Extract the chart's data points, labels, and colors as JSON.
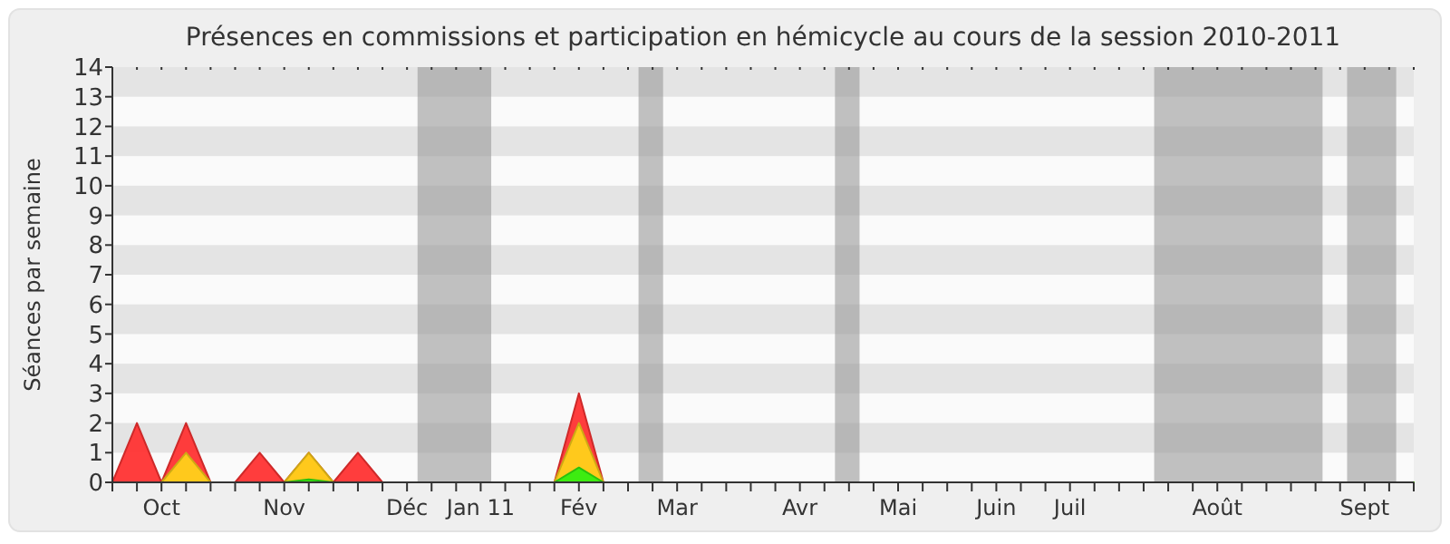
{
  "chart_data": {
    "type": "area",
    "title": "Présences en commissions et participation en hémicycle au cours de la session 2010-2011",
    "ylabel": "Séances par semaine",
    "x": [
      "2010-09-27",
      "2010-10-04",
      "2010-10-11",
      "2010-10-18",
      "2010-10-25",
      "2010-11-01",
      "2010-11-08",
      "2010-11-15",
      "2010-11-22",
      "2010-11-29",
      "2010-12-06",
      "2010-12-13",
      "2010-12-20",
      "2010-12-27",
      "2011-01-03",
      "2011-01-10",
      "2011-01-17",
      "2011-01-24",
      "2011-01-31",
      "2011-02-07",
      "2011-02-14",
      "2011-02-21",
      "2011-02-28",
      "2011-03-07",
      "2011-03-14",
      "2011-03-21",
      "2011-03-28",
      "2011-04-04",
      "2011-04-11",
      "2011-04-18",
      "2011-04-25",
      "2011-05-02",
      "2011-05-09",
      "2011-05-16",
      "2011-05-23",
      "2011-05-30",
      "2011-06-06",
      "2011-06-13",
      "2011-06-20",
      "2011-06-27",
      "2011-07-04",
      "2011-07-11",
      "2011-07-18",
      "2011-07-25",
      "2011-08-01",
      "2011-08-08",
      "2011-08-15",
      "2011-08-22",
      "2011-08-29",
      "2011-09-05",
      "2011-09-12",
      "2011-09-19",
      "2011-09-26",
      "2011-10-03"
    ],
    "series": [
      {
        "color": "#ff3333",
        "values": [
          0,
          2,
          0,
          2,
          0,
          0,
          1,
          0,
          1,
          0,
          1,
          0,
          0,
          0,
          0,
          0,
          0,
          0,
          0,
          3,
          0,
          0,
          0,
          0,
          0,
          0,
          0,
          0,
          0,
          0,
          0,
          0,
          0,
          0,
          0,
          0,
          0,
          0,
          0,
          0,
          0,
          0,
          0,
          0,
          0,
          0,
          0,
          0,
          0,
          0,
          0,
          0,
          0,
          0
        ]
      },
      {
        "color": "#ffd11a",
        "values": [
          0,
          0,
          0,
          1,
          0,
          0,
          0,
          0,
          1,
          0,
          0,
          0,
          0,
          0,
          0,
          0,
          0,
          0,
          0,
          2,
          0,
          0,
          0,
          0,
          0,
          0,
          0,
          0,
          0,
          0,
          0,
          0,
          0,
          0,
          0,
          0,
          0,
          0,
          0,
          0,
          0,
          0,
          0,
          0,
          0,
          0,
          0,
          0,
          0,
          0,
          0,
          0,
          0,
          0
        ]
      },
      {
        "color": "#33ee11",
        "values": [
          0,
          0,
          0,
          0,
          0,
          0,
          0,
          0,
          0.1,
          0,
          0,
          0,
          0,
          0,
          0,
          0,
          0,
          0,
          0,
          0.5,
          0,
          0,
          0,
          0,
          0,
          0,
          0,
          0,
          0,
          0,
          0,
          0,
          0,
          0,
          0,
          0,
          0,
          0,
          0,
          0,
          0,
          0,
          0,
          0,
          0,
          0,
          0,
          0,
          0,
          0,
          0,
          0,
          0,
          0
        ]
      }
    ],
    "xlim": [
      "2010-09-27",
      "2011-10-03"
    ],
    "xticks": [
      {
        "value": "2010-09-27",
        "label": null
      },
      {
        "value": "2010-10-04",
        "label": null
      },
      {
        "value": "2010-10-11",
        "label": "Oct"
      },
      {
        "value": "2010-10-18",
        "label": null
      },
      {
        "value": "2010-10-25",
        "label": null
      },
      {
        "value": "2010-11-01",
        "label": null
      },
      {
        "value": "2010-11-08",
        "label": null
      },
      {
        "value": "2010-11-15",
        "label": "Nov"
      },
      {
        "value": "2010-11-22",
        "label": null
      },
      {
        "value": "2010-11-29",
        "label": null
      },
      {
        "value": "2010-12-06",
        "label": null
      },
      {
        "value": "2010-12-13",
        "label": null
      },
      {
        "value": "2010-12-20",
        "label": "Déc"
      },
      {
        "value": "2010-12-27",
        "label": null
      },
      {
        "value": "2011-01-03",
        "label": null
      },
      {
        "value": "2011-01-10",
        "label": "Jan 11"
      },
      {
        "value": "2011-01-17",
        "label": null
      },
      {
        "value": "2011-01-24",
        "label": null
      },
      {
        "value": "2011-01-31",
        "label": null
      },
      {
        "value": "2011-02-07",
        "label": "Fév"
      },
      {
        "value": "2011-02-14",
        "label": null
      },
      {
        "value": "2011-02-21",
        "label": null
      },
      {
        "value": "2011-02-28",
        "label": null
      },
      {
        "value": "2011-03-07",
        "label": "Mar"
      },
      {
        "value": "2011-03-14",
        "label": null
      },
      {
        "value": "2011-03-21",
        "label": null
      },
      {
        "value": "2011-03-28",
        "label": null
      },
      {
        "value": "2011-04-04",
        "label": null
      },
      {
        "value": "2011-04-11",
        "label": "Avr"
      },
      {
        "value": "2011-04-18",
        "label": null
      },
      {
        "value": "2011-04-25",
        "label": null
      },
      {
        "value": "2011-05-02",
        "label": null
      },
      {
        "value": "2011-05-09",
        "label": "Mai"
      },
      {
        "value": "2011-05-16",
        "label": null
      },
      {
        "value": "2011-05-23",
        "label": null
      },
      {
        "value": "2011-05-30",
        "label": null
      },
      {
        "value": "2011-06-06",
        "label": "Juin"
      },
      {
        "value": "2011-06-13",
        "label": null
      },
      {
        "value": "2011-06-20",
        "label": null
      },
      {
        "value": "2011-06-27",
        "label": "Juil"
      },
      {
        "value": "2011-07-04",
        "label": null
      },
      {
        "value": "2011-07-11",
        "label": null
      },
      {
        "value": "2011-07-18",
        "label": null
      },
      {
        "value": "2011-07-25",
        "label": null
      },
      {
        "value": "2011-08-01",
        "label": null
      },
      {
        "value": "2011-08-08",
        "label": "Août"
      },
      {
        "value": "2011-08-15",
        "label": null
      },
      {
        "value": "2011-08-22",
        "label": null
      },
      {
        "value": "2011-08-29",
        "label": null
      },
      {
        "value": "2011-09-05",
        "label": null
      },
      {
        "value": "2011-09-12",
        "label": null
      },
      {
        "value": "2011-09-19",
        "label": "Sept"
      },
      {
        "value": "2011-09-26",
        "label": null
      },
      {
        "value": "2011-10-03",
        "label": null
      }
    ],
    "ylim": [
      0,
      14
    ],
    "yticks": [
      0,
      1,
      2,
      3,
      4,
      5,
      6,
      7,
      8,
      9,
      10,
      11,
      12,
      13,
      14
    ],
    "bands": [
      {
        "axis": "x",
        "from": "2010-12-23",
        "to": "2011-01-13",
        "color": "#999999"
      },
      {
        "axis": "x",
        "from": "2011-02-24",
        "to": "2011-03-03",
        "color": "#999999"
      },
      {
        "axis": "x",
        "from": "2011-04-21",
        "to": "2011-04-28",
        "color": "#999999"
      },
      {
        "axis": "x",
        "from": "2011-07-21",
        "to": "2011-09-07",
        "color": "#999999"
      },
      {
        "axis": "x",
        "from": "2011-09-14",
        "to": "2011-09-28",
        "color": "#999999"
      }
    ]
  }
}
